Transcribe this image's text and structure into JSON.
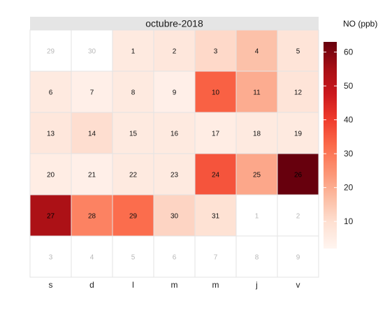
{
  "chart_data": {
    "type": "heatmap",
    "title": "octubre-2018",
    "legend": {
      "title": "NO (ppb)",
      "min": 2,
      "max": 63,
      "ticks": [
        10,
        20,
        30,
        40,
        50,
        60
      ],
      "colors": [
        "#fff5f0",
        "#fee0d2",
        "#fcbba1",
        "#fc9272",
        "#fb6a4a",
        "#ef3b2c",
        "#cb181d",
        "#a50f15",
        "#67000d"
      ]
    },
    "weekdays": [
      "s",
      "d",
      "l",
      "m",
      "m",
      "j",
      "v"
    ],
    "weeks": [
      [
        {
          "day": "29",
          "in_month": false,
          "value": null
        },
        {
          "day": "30",
          "in_month": false,
          "value": null
        },
        {
          "day": "1",
          "in_month": true,
          "value": 6
        },
        {
          "day": "2",
          "in_month": true,
          "value": 7
        },
        {
          "day": "3",
          "in_month": true,
          "value": 11
        },
        {
          "day": "4",
          "in_month": true,
          "value": 16
        },
        {
          "day": "5",
          "in_month": true,
          "value": 8
        }
      ],
      [
        {
          "day": "6",
          "in_month": true,
          "value": 6
        },
        {
          "day": "7",
          "in_month": true,
          "value": 4
        },
        {
          "day": "8",
          "in_month": true,
          "value": 6
        },
        {
          "day": "9",
          "in_month": true,
          "value": 4
        },
        {
          "day": "10",
          "in_month": true,
          "value": 34
        },
        {
          "day": "11",
          "in_month": true,
          "value": 20
        },
        {
          "day": "12",
          "in_month": true,
          "value": 8
        }
      ],
      [
        {
          "day": "13",
          "in_month": true,
          "value": 7
        },
        {
          "day": "14",
          "in_month": true,
          "value": 10
        },
        {
          "day": "15",
          "in_month": true,
          "value": 6
        },
        {
          "day": "16",
          "in_month": true,
          "value": 6
        },
        {
          "day": "17",
          "in_month": true,
          "value": 5
        },
        {
          "day": "18",
          "in_month": true,
          "value": 6
        },
        {
          "day": "19",
          "in_month": true,
          "value": 6
        }
      ],
      [
        {
          "day": "20",
          "in_month": true,
          "value": 5
        },
        {
          "day": "21",
          "in_month": true,
          "value": 4
        },
        {
          "day": "22",
          "in_month": true,
          "value": 6
        },
        {
          "day": "23",
          "in_month": true,
          "value": 6
        },
        {
          "day": "24",
          "in_month": true,
          "value": 36
        },
        {
          "day": "25",
          "in_month": true,
          "value": 21
        },
        {
          "day": "26",
          "in_month": true,
          "value": 63
        }
      ],
      [
        {
          "day": "27",
          "in_month": true,
          "value": 54
        },
        {
          "day": "28",
          "in_month": true,
          "value": 28
        },
        {
          "day": "29",
          "in_month": true,
          "value": 32
        },
        {
          "day": "30",
          "in_month": true,
          "value": 12
        },
        {
          "day": "31",
          "in_month": true,
          "value": 9
        },
        {
          "day": "1",
          "in_month": false,
          "value": null
        },
        {
          "day": "2",
          "in_month": false,
          "value": null
        }
      ],
      [
        {
          "day": "3",
          "in_month": false,
          "value": null
        },
        {
          "day": "4",
          "in_month": false,
          "value": null
        },
        {
          "day": "5",
          "in_month": false,
          "value": null
        },
        {
          "day": "6",
          "in_month": false,
          "value": null
        },
        {
          "day": "7",
          "in_month": false,
          "value": null
        },
        {
          "day": "8",
          "in_month": false,
          "value": null
        },
        {
          "day": "9",
          "in_month": false,
          "value": null
        }
      ]
    ]
  }
}
